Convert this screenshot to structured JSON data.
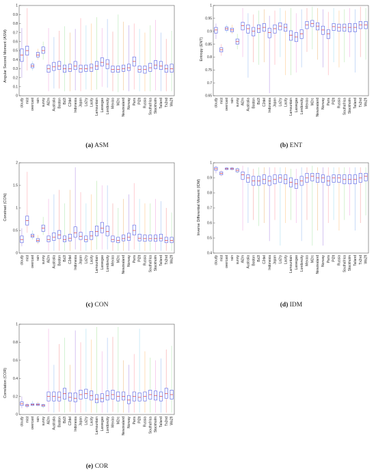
{
  "chart_data": [
    {
      "type": "boxplot",
      "caption_label": "(a)",
      "caption_text": "ASM",
      "ylabel": "Angular Second Moment (ASM)",
      "ylim": [
        0,
        1
      ],
      "yticks": [
        0,
        0.1,
        0.2,
        0.3,
        0.4,
        0.5,
        0.6,
        0.7,
        0.8,
        0.9,
        1
      ],
      "categories": [
        "cloudy",
        "mist",
        "overcast",
        "rain",
        "sunny",
        "Al2m",
        "Australia",
        "Boston",
        "Bz2l",
        "C2del",
        "Indonesia",
        "Japan",
        "La2ry",
        "Lacity",
        "Lamountain",
        "Lasvegas",
        "Londoncity",
        "Mexico",
        "M2rc",
        "Newzealand",
        "Norway",
        "Paris",
        "Pl2lt",
        "Russia",
        "Southafrica",
        "Stockholm",
        "Tailand",
        "Tx2nd",
        "Wa2fl"
      ],
      "series": [
        {
          "median": [
            0.45,
            0.5,
            0.33,
            0.45,
            0.5,
            0.3,
            0.32,
            0.33,
            0.3,
            0.3,
            0.33,
            0.3,
            0.3,
            0.31,
            0.33,
            0.37,
            0.35,
            0.29,
            0.29,
            0.3,
            0.31,
            0.38,
            0.29,
            0.29,
            0.31,
            0.34,
            0.33,
            0.3,
            0.3
          ],
          "q1": [
            0.38,
            0.45,
            0.31,
            0.43,
            0.47,
            0.26,
            0.28,
            0.29,
            0.26,
            0.27,
            0.29,
            0.26,
            0.27,
            0.27,
            0.29,
            0.33,
            0.3,
            0.26,
            0.26,
            0.27,
            0.28,
            0.33,
            0.26,
            0.25,
            0.27,
            0.3,
            0.29,
            0.26,
            0.26
          ],
          "q3": [
            0.52,
            0.55,
            0.35,
            0.48,
            0.54,
            0.34,
            0.37,
            0.38,
            0.34,
            0.35,
            0.38,
            0.34,
            0.34,
            0.35,
            0.38,
            0.42,
            0.4,
            0.33,
            0.33,
            0.34,
            0.35,
            0.43,
            0.33,
            0.33,
            0.36,
            0.39,
            0.38,
            0.34,
            0.35
          ],
          "min": [
            0.2,
            0.28,
            0.28,
            0.4,
            0.4,
            0.05,
            0.08,
            0.08,
            0.05,
            0.05,
            0.06,
            0.05,
            0.07,
            0.06,
            0.07,
            0.1,
            0.09,
            0.05,
            0.04,
            0.06,
            0.05,
            0.07,
            0.05,
            0.05,
            0.05,
            0.06,
            0.05,
            0.05,
            0.05
          ],
          "max": [
            0.75,
            0.97,
            0.38,
            0.52,
            0.6,
            0.75,
            0.65,
            0.72,
            0.77,
            0.7,
            0.74,
            0.86,
            0.78,
            0.8,
            0.87,
            0.75,
            0.85,
            0.71,
            0.9,
            0.82,
            0.78,
            0.8,
            0.74,
            0.7,
            0.78,
            0.84,
            0.7,
            0.63,
            0.72
          ]
        }
      ]
    },
    {
      "type": "boxplot",
      "caption_label": "(b)",
      "caption_text": "ENT",
      "ylabel": "Entropy (ENT)",
      "ylim": [
        0.65,
        1
      ],
      "yticks": [
        0.65,
        0.7,
        0.75,
        0.8,
        0.85,
        0.9,
        0.95,
        1
      ],
      "categories": [
        "cloudy",
        "mist",
        "overcast",
        "rain",
        "sunny",
        "Al2m",
        "Australia",
        "Boston",
        "Bz2l",
        "C2del",
        "Indonesia",
        "Japan",
        "La2ry",
        "Lacity",
        "Lamountain",
        "Lasvegas",
        "Londoncity",
        "Mexico",
        "M2rc",
        "Newzealand",
        "Norway",
        "Paris",
        "Pl2lt",
        "Russia",
        "Southafrica",
        "Stockholm",
        "Tailand",
        "Tx2nd",
        "Wa2fl"
      ],
      "series": [
        {
          "median": [
            0.905,
            0.828,
            0.91,
            0.905,
            0.86,
            0.922,
            0.91,
            0.9,
            0.91,
            0.915,
            0.895,
            0.91,
            0.92,
            0.915,
            0.885,
            0.878,
            0.89,
            0.925,
            0.93,
            0.92,
            0.905,
            0.89,
            0.918,
            0.915,
            0.915,
            0.915,
            0.915,
            0.925,
            0.925
          ],
          "q1": [
            0.893,
            0.82,
            0.904,
            0.898,
            0.85,
            0.905,
            0.893,
            0.882,
            0.895,
            0.9,
            0.875,
            0.893,
            0.905,
            0.9,
            0.865,
            0.86,
            0.872,
            0.91,
            0.918,
            0.905,
            0.888,
            0.872,
            0.903,
            0.9,
            0.9,
            0.898,
            0.898,
            0.91,
            0.91
          ],
          "q3": [
            0.915,
            0.836,
            0.916,
            0.912,
            0.87,
            0.935,
            0.925,
            0.915,
            0.925,
            0.93,
            0.912,
            0.925,
            0.933,
            0.928,
            0.902,
            0.895,
            0.906,
            0.938,
            0.942,
            0.933,
            0.92,
            0.906,
            0.93,
            0.928,
            0.928,
            0.93,
            0.93,
            0.938,
            0.938
          ],
          "min": [
            0.87,
            0.805,
            0.895,
            0.89,
            0.83,
            0.8,
            0.72,
            0.78,
            0.77,
            0.78,
            0.66,
            0.77,
            0.8,
            0.73,
            0.73,
            0.74,
            0.76,
            0.82,
            0.83,
            0.79,
            0.76,
            0.73,
            0.78,
            0.76,
            0.78,
            0.8,
            0.74,
            0.8,
            0.79
          ],
          "max": [
            0.93,
            0.85,
            0.925,
            0.925,
            0.89,
            0.99,
            0.97,
            0.965,
            0.98,
            0.985,
            0.96,
            0.98,
            0.99,
            0.98,
            0.99,
            0.97,
            0.985,
            0.99,
            0.995,
            0.99,
            0.985,
            0.975,
            0.99,
            0.98,
            0.985,
            0.99,
            0.985,
            0.995,
            0.99
          ]
        }
      ]
    },
    {
      "type": "boxplot",
      "caption_label": "(c)",
      "caption_text": "CON",
      "ylabel": "Constrast (CON)",
      "ylim": [
        0,
        2
      ],
      "yticks": [
        0,
        0.5,
        1,
        1.5,
        2
      ],
      "categories": [
        "cloudy",
        "mist",
        "overcast",
        "rain",
        "sunny",
        "Al2m",
        "Australia",
        "Boston",
        "Bz2l",
        "C2del",
        "Indonesia",
        "Japan",
        "La2ry",
        "Lacity",
        "Lamountain",
        "Lasvegas",
        "Londoncity",
        "Mexico",
        "M2rc",
        "Newzealand",
        "Norway",
        "Paris",
        "Pl2lt",
        "Russia",
        "Southafrica",
        "Stockholm",
        "Tailand",
        "Tx2nd",
        "Wa2fl"
      ],
      "series": [
        {
          "median": [
            0.3,
            0.72,
            0.38,
            0.28,
            0.55,
            0.3,
            0.35,
            0.4,
            0.3,
            0.33,
            0.45,
            0.37,
            0.3,
            0.38,
            0.48,
            0.55,
            0.48,
            0.3,
            0.28,
            0.32,
            0.35,
            0.5,
            0.33,
            0.32,
            0.32,
            0.32,
            0.33,
            0.28,
            0.28
          ],
          "q1": [
            0.23,
            0.62,
            0.35,
            0.25,
            0.48,
            0.25,
            0.28,
            0.32,
            0.25,
            0.27,
            0.35,
            0.3,
            0.25,
            0.3,
            0.38,
            0.45,
            0.38,
            0.25,
            0.23,
            0.27,
            0.28,
            0.4,
            0.27,
            0.26,
            0.27,
            0.26,
            0.27,
            0.23,
            0.23
          ],
          "q3": [
            0.38,
            0.82,
            0.42,
            0.32,
            0.62,
            0.38,
            0.45,
            0.5,
            0.38,
            0.42,
            0.58,
            0.46,
            0.38,
            0.48,
            0.6,
            0.68,
            0.6,
            0.38,
            0.35,
            0.4,
            0.44,
            0.62,
            0.42,
            0.4,
            0.4,
            0.4,
            0.42,
            0.35,
            0.35
          ],
          "min": [
            0.15,
            0.45,
            0.3,
            0.2,
            0.4,
            0.05,
            0.05,
            0.05,
            0.05,
            0.05,
            0.08,
            0.05,
            0.05,
            0.06,
            0.08,
            0.08,
            0.08,
            0.05,
            0.05,
            0.05,
            0.05,
            0.08,
            0.05,
            0.05,
            0.05,
            0.05,
            0.05,
            0.05,
            0.05
          ],
          "max": [
            0.55,
            1.8,
            0.5,
            0.4,
            0.8,
            1.2,
            1.3,
            1.4,
            1.1,
            1.4,
            1.9,
            1.35,
            1.1,
            1.3,
            1.6,
            1.5,
            1.5,
            1.1,
            1.0,
            1.2,
            1.3,
            1.55,
            1.2,
            1.1,
            1.1,
            1.2,
            1.15,
            1.0,
            0.9
          ]
        }
      ]
    },
    {
      "type": "boxplot",
      "caption_label": "(d)",
      "caption_text": "IDM",
      "ylabel": "Inverse Differential Moment (IDM)",
      "ylim": [
        0.4,
        1
      ],
      "yticks": [
        0.4,
        0.5,
        0.6,
        0.7,
        0.8,
        0.9,
        1
      ],
      "categories": [
        "cloudy",
        "mist",
        "overcast",
        "rain",
        "sunny",
        "Al2m",
        "Australia",
        "Boston",
        "Bz2l",
        "C2del",
        "Indonesia",
        "Japan",
        "La2ry",
        "Lacity",
        "Lamountain",
        "Lasvegas",
        "Londoncity",
        "Mexico",
        "M2rc",
        "Newzealand",
        "Norway",
        "Paris",
        "Pl2lt",
        "Russia",
        "Southafrica",
        "Stockholm",
        "Tailand",
        "Tx2nd",
        "Wa2fl"
      ],
      "series": [
        {
          "median": [
            0.96,
            0.93,
            0.96,
            0.96,
            0.95,
            0.92,
            0.9,
            0.88,
            0.88,
            0.89,
            0.88,
            0.89,
            0.9,
            0.89,
            0.87,
            0.86,
            0.88,
            0.9,
            0.91,
            0.9,
            0.9,
            0.88,
            0.9,
            0.9,
            0.89,
            0.89,
            0.89,
            0.9,
            0.91
          ],
          "q1": [
            0.95,
            0.92,
            0.955,
            0.955,
            0.94,
            0.89,
            0.87,
            0.85,
            0.85,
            0.86,
            0.85,
            0.86,
            0.87,
            0.86,
            0.84,
            0.83,
            0.85,
            0.87,
            0.88,
            0.87,
            0.87,
            0.85,
            0.87,
            0.87,
            0.86,
            0.86,
            0.86,
            0.87,
            0.88
          ],
          "q3": [
            0.97,
            0.94,
            0.965,
            0.965,
            0.96,
            0.94,
            0.92,
            0.91,
            0.91,
            0.92,
            0.91,
            0.92,
            0.92,
            0.92,
            0.9,
            0.89,
            0.91,
            0.93,
            0.93,
            0.93,
            0.92,
            0.91,
            0.92,
            0.92,
            0.92,
            0.92,
            0.92,
            0.93,
            0.93
          ],
          "min": [
            0.93,
            0.91,
            0.95,
            0.95,
            0.93,
            0.55,
            0.6,
            0.62,
            0.58,
            0.6,
            0.48,
            0.62,
            0.45,
            0.6,
            0.62,
            0.6,
            0.48,
            0.62,
            0.45,
            0.55,
            0.45,
            0.6,
            0.62,
            0.55,
            0.62,
            0.65,
            0.55,
            0.6,
            0.65
          ],
          "max": [
            0.98,
            0.95,
            0.97,
            0.97,
            0.97,
            0.98,
            0.97,
            0.96,
            0.97,
            0.97,
            0.97,
            0.97,
            0.97,
            0.97,
            0.96,
            0.96,
            0.97,
            0.97,
            0.98,
            0.97,
            0.97,
            0.97,
            0.97,
            0.97,
            0.97,
            0.97,
            0.97,
            0.97,
            0.97
          ]
        }
      ]
    },
    {
      "type": "boxplot",
      "caption_label": "(e)",
      "caption_text": "COR",
      "ylabel": "Correlation (COR)",
      "ylim": [
        0,
        1
      ],
      "yticks": [
        0,
        0.2,
        0.4,
        0.6,
        0.8,
        1
      ],
      "categories": [
        "cloudy",
        "mist",
        "overcast",
        "rain",
        "sunny",
        "Al2m",
        "Australia",
        "Boston",
        "Bz2l",
        "C2del",
        "Indonesia",
        "Japan",
        "La2ry",
        "Lacity",
        "Lamountain",
        "Lasvegas",
        "Londoncity",
        "Mexico",
        "M2rc",
        "Newzealand",
        "Norway",
        "Paris",
        "Pl2lt",
        "Russia",
        "Southafrica",
        "Stockholm",
        "Tailand",
        "Tx2nd",
        "Wa2fl"
      ],
      "series": [
        {
          "median": [
            0.12,
            0.1,
            0.11,
            0.11,
            0.1,
            0.2,
            0.2,
            0.19,
            0.23,
            0.19,
            0.18,
            0.22,
            0.23,
            0.21,
            0.17,
            0.18,
            0.21,
            0.22,
            0.2,
            0.2,
            0.16,
            0.2,
            0.19,
            0.2,
            0.22,
            0.21,
            0.2,
            0.23,
            0.22
          ],
          "q1": [
            0.1,
            0.09,
            0.1,
            0.1,
            0.09,
            0.15,
            0.15,
            0.15,
            0.17,
            0.15,
            0.14,
            0.17,
            0.18,
            0.16,
            0.13,
            0.14,
            0.16,
            0.17,
            0.15,
            0.16,
            0.12,
            0.15,
            0.15,
            0.15,
            0.17,
            0.16,
            0.15,
            0.18,
            0.17
          ],
          "q3": [
            0.14,
            0.11,
            0.12,
            0.12,
            0.11,
            0.25,
            0.25,
            0.25,
            0.29,
            0.24,
            0.24,
            0.27,
            0.28,
            0.26,
            0.22,
            0.23,
            0.26,
            0.27,
            0.25,
            0.25,
            0.21,
            0.25,
            0.24,
            0.25,
            0.27,
            0.26,
            0.25,
            0.29,
            0.27
          ],
          "min": [
            0.07,
            0.07,
            0.09,
            0.09,
            0.07,
            0.03,
            0.02,
            0.03,
            0.02,
            0.03,
            0.02,
            0.02,
            0.03,
            0.02,
            0.02,
            0.02,
            0.02,
            0.03,
            0.02,
            0.02,
            0.02,
            0.02,
            0.02,
            0.02,
            0.02,
            0.02,
            0.02,
            0.02,
            0.02
          ],
          "max": [
            0.2,
            0.13,
            0.15,
            0.14,
            0.12,
            0.95,
            0.55,
            0.78,
            0.85,
            0.55,
            0.93,
            0.8,
            0.95,
            0.83,
            0.97,
            0.7,
            0.85,
            0.86,
            0.97,
            0.6,
            0.55,
            0.67,
            0.95,
            0.7,
            0.63,
            0.6,
            0.62,
            0.72,
            0.76
          ]
        }
      ]
    }
  ]
}
